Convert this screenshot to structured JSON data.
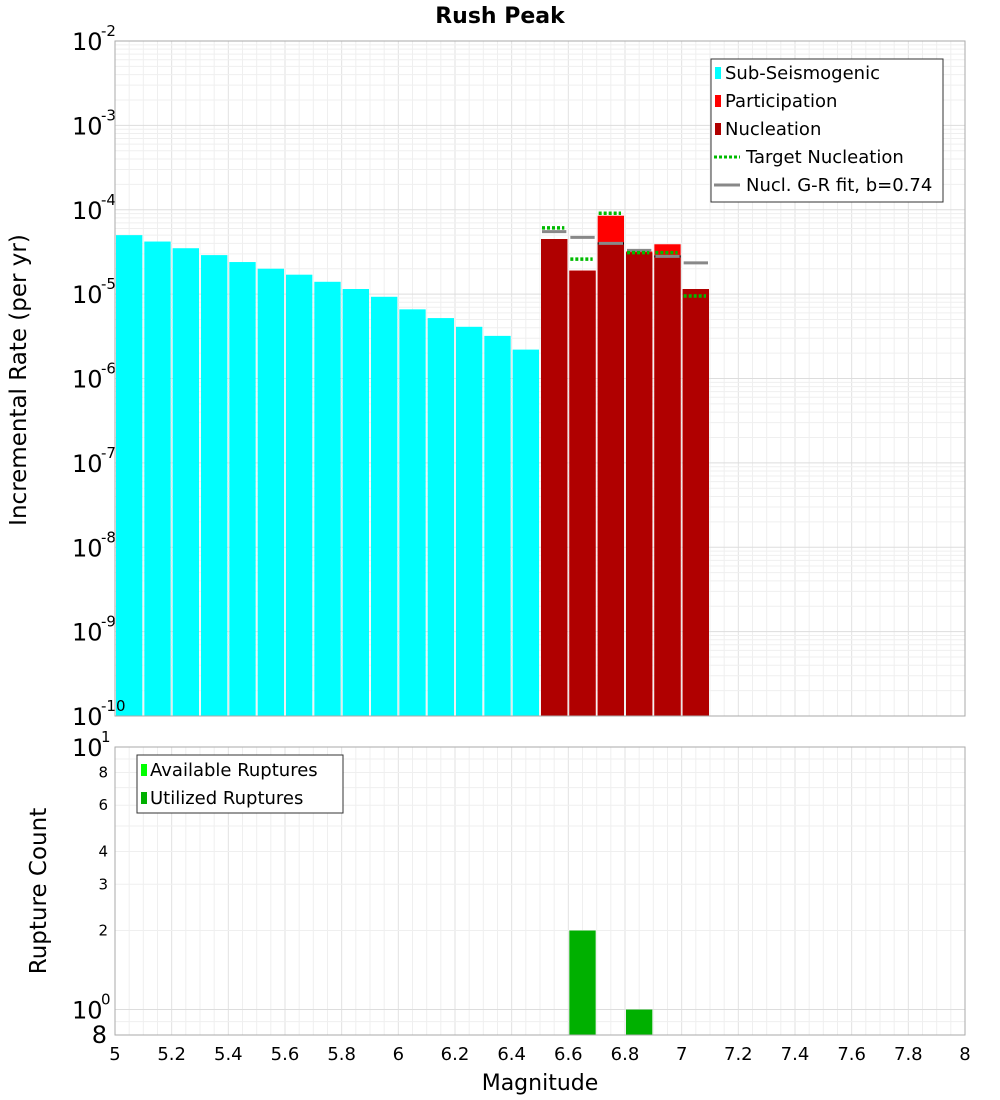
{
  "chart_data": [
    {
      "type": "bar",
      "title": "Rush Peak",
      "xlabel": "",
      "ylabel": "Incremental Rate (per yr)",
      "xlim": [
        5,
        8
      ],
      "ylim": [
        1e-10,
        0.01
      ],
      "yscale": "log",
      "grid": true,
      "legend_position": "top-right",
      "y_ticks": [
        {
          "base": "10",
          "exp": "-10",
          "value": 1e-10
        },
        {
          "base": "10",
          "exp": "-9",
          "value": 1e-09
        },
        {
          "base": "10",
          "exp": "-8",
          "value": 1e-08
        },
        {
          "base": "10",
          "exp": "-7",
          "value": 1e-07
        },
        {
          "base": "10",
          "exp": "-6",
          "value": 1e-06
        },
        {
          "base": "10",
          "exp": "-5",
          "value": 1e-05
        },
        {
          "base": "10",
          "exp": "-4",
          "value": 0.0001
        },
        {
          "base": "10",
          "exp": "-3",
          "value": 0.001
        },
        {
          "base": "10",
          "exp": "-2",
          "value": 0.01
        }
      ],
      "legend": [
        {
          "label": "Sub-Seismogenic",
          "color": "#00ffff",
          "style": "box"
        },
        {
          "label": "Participation",
          "color": "#ff0000",
          "style": "box"
        },
        {
          "label": "Nucleation",
          "color": "#b00000",
          "style": "box"
        },
        {
          "label": "Target Nucleation",
          "color": "#00bb00",
          "style": "dotted"
        },
        {
          "label": "Nucl. G-R fit, b=0.74",
          "color": "#888888",
          "style": "line"
        }
      ],
      "bin_width": 0.1,
      "series": [
        {
          "name": "Sub-Seismogenic",
          "color": "#00ffff",
          "x": [
            5.05,
            5.15,
            5.25,
            5.35,
            5.45,
            5.55,
            5.65,
            5.75,
            5.85,
            5.95,
            6.05,
            6.15,
            6.25,
            6.35,
            6.45
          ],
          "values": [
            5e-05,
            4.2e-05,
            3.5e-05,
            2.9e-05,
            2.4e-05,
            2e-05,
            1.7e-05,
            1.4e-05,
            1.15e-05,
            9.3e-06,
            6.6e-06,
            5.2e-06,
            4.1e-06,
            3.2e-06,
            2.2e-06
          ]
        },
        {
          "name": "Participation",
          "color": "#ff0000",
          "x": [
            6.55,
            6.65,
            6.75,
            6.85,
            6.95,
            7.05
          ],
          "values": [
            4.5e-05,
            1.9e-05,
            8.5e-05,
            3.2e-05,
            3.9e-05,
            1.15e-05
          ]
        },
        {
          "name": "Nucleation",
          "color": "#b00000",
          "x": [
            6.55,
            6.65,
            6.75,
            6.85,
            6.95,
            7.05
          ],
          "values": [
            4.5e-05,
            1.9e-05,
            4e-05,
            3.1e-05,
            2.8e-05,
            1.15e-05
          ]
        },
        {
          "name": "Target Nucleation",
          "color": "#00bb00",
          "x": [
            6.55,
            6.65,
            6.75,
            6.85,
            6.95,
            7.05
          ],
          "values": [
            6.1e-05,
            2.6e-05,
            9.1e-05,
            3.1e-05,
            3.1e-05,
            9.5e-06
          ]
        },
        {
          "name": "Nucl. G-R fit, b=0.74",
          "color": "#888888",
          "x": [
            6.55,
            6.65,
            6.75,
            6.85,
            6.95,
            7.05
          ],
          "values": [
            5.5e-05,
            4.7e-05,
            4e-05,
            3.3e-05,
            2.8e-05,
            2.35e-05
          ]
        }
      ]
    },
    {
      "type": "bar",
      "title": "",
      "xlabel": "Magnitude",
      "ylabel": "Rupture Count",
      "xlim": [
        5,
        8
      ],
      "ylim": [
        0.8,
        10
      ],
      "yscale": "log",
      "grid": true,
      "legend_position": "top-left",
      "x_ticks": [
        "5",
        "5.2",
        "5.4",
        "5.6",
        "5.8",
        "6",
        "6.2",
        "6.4",
        "6.6",
        "6.8",
        "7",
        "7.2",
        "7.4",
        "7.6",
        "7.8",
        "8"
      ],
      "y_ticks": [
        {
          "base": "10",
          "exp": "1",
          "value": 10
        },
        {
          "base": "10",
          "exp": "0",
          "value": 1
        }
      ],
      "y_minor_ticks": [
        {
          "label": "8",
          "value": 8
        },
        {
          "label": "6",
          "value": 6
        },
        {
          "label": "4",
          "value": 4
        },
        {
          "label": "3",
          "value": 3
        },
        {
          "label": "2",
          "value": 2
        },
        {
          "label": "8",
          "value": 0.8
        }
      ],
      "legend": [
        {
          "label": "Available Ruptures",
          "color": "#00ff00",
          "style": "box"
        },
        {
          "label": "Utilized Ruptures",
          "color": "#00b000",
          "style": "box"
        }
      ],
      "bin_width": 0.1,
      "series": [
        {
          "name": "Utilized Ruptures",
          "color": "#00b000",
          "x": [
            6.65,
            6.85
          ],
          "values": [
            2,
            1
          ]
        }
      ]
    }
  ]
}
